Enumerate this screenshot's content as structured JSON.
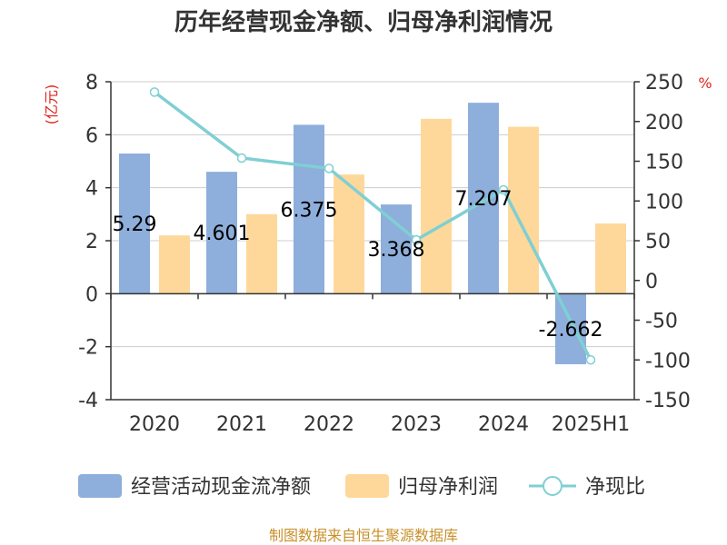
{
  "chart_data": {
    "type": "bar",
    "title": "历年经营现金净额、归母净利润情况",
    "categories": [
      "2020",
      "2021",
      "2022",
      "2023",
      "2024",
      "2025H1"
    ],
    "left_axis": {
      "unit": "(亿元)",
      "ylim": [
        -4,
        8
      ],
      "ticks": [
        -4,
        -2,
        0,
        2,
        4,
        6,
        8
      ]
    },
    "right_axis": {
      "unit": "%",
      "ylim": [
        -150,
        250
      ],
      "ticks": [
        -150,
        -100,
        -50,
        0,
        50,
        100,
        150,
        200,
        250
      ]
    },
    "series": [
      {
        "name": "经营活动现金流净额",
        "kind": "bar",
        "axis": "left",
        "color": "#8eaedb",
        "values": [
          5.29,
          4.601,
          6.375,
          3.368,
          7.207,
          -2.662
        ],
        "labels": [
          "5.29",
          "4.601",
          "6.375",
          "3.368",
          "7.207",
          "-2.662"
        ]
      },
      {
        "name": "归母净利润",
        "kind": "bar",
        "axis": "left",
        "color": "#fed89a",
        "values": [
          2.2,
          3.0,
          4.5,
          6.6,
          6.3,
          2.65
        ]
      },
      {
        "name": "净现比",
        "kind": "line",
        "axis": "right",
        "color": "#7fcfd3",
        "values": [
          237,
          154,
          141,
          51,
          114,
          -100
        ]
      }
    ],
    "grid": true,
    "legend_position": "bottom"
  },
  "source": "制图数据来自恒生聚源数据库"
}
